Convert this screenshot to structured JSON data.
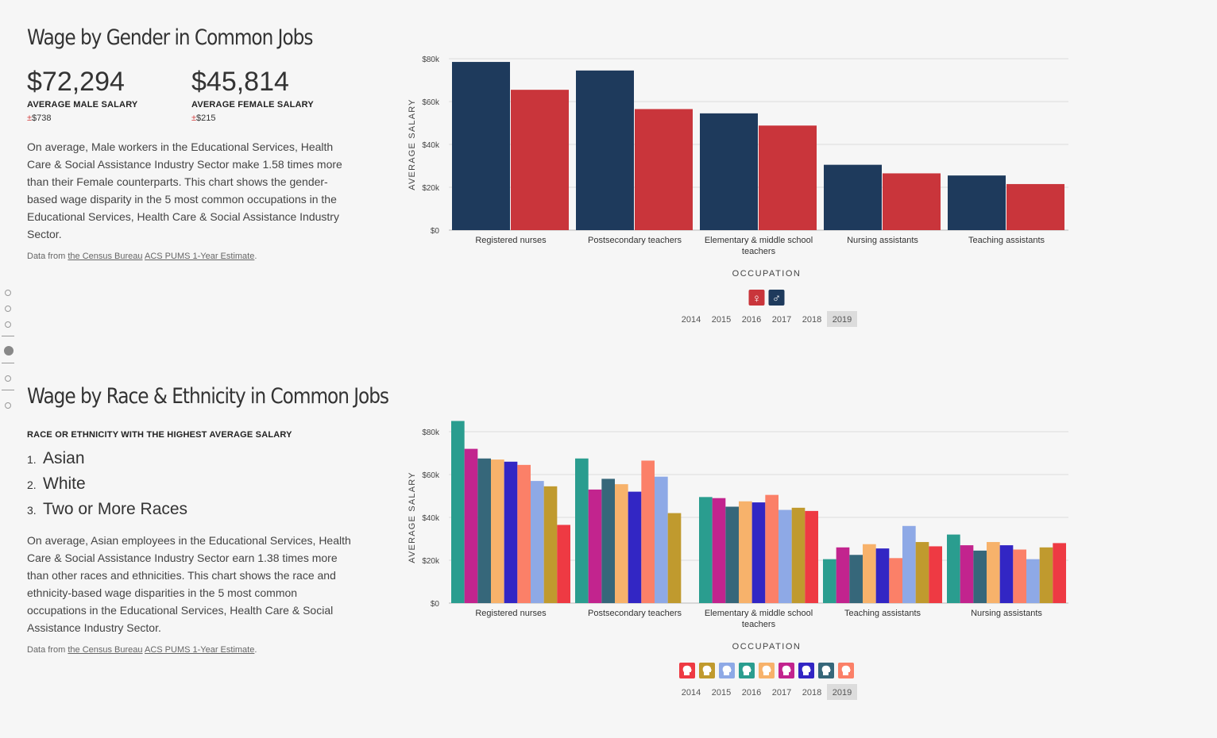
{
  "gender": {
    "title": "Wage by Gender in Common Jobs",
    "male": {
      "value": "$72,294",
      "label": "AVERAGE MALE SALARY",
      "moe_sign": "±",
      "moe": "$738"
    },
    "female": {
      "value": "$45,814",
      "label": "AVERAGE FEMALE SALARY",
      "moe_sign": "±",
      "moe": "$215"
    },
    "description": "On average, Male workers in the Educational Services, Health Care & Social Assistance Industry Sector make 1.58 times more than their Female counterparts. This chart shows the gender-based wage disparity in the 5 most common occupations in the Educational Services, Health Care & Social Assistance Industry Sector.",
    "source_prefix": "Data from",
    "source_link1": "the Census Bureau",
    "source_link2": "ACS PUMS 1-Year Estimate",
    "source_suffix": "."
  },
  "race": {
    "title": "Wage by Race & Ethnicity in Common Jobs",
    "ranking_heading": "RACE OR ETHNICITY WITH THE HIGHEST AVERAGE SALARY",
    "ranking": [
      {
        "num": "1.",
        "name": "Asian"
      },
      {
        "num": "2.",
        "name": "White"
      },
      {
        "num": "3.",
        "name": "Two or More Races"
      }
    ],
    "description": "On average, Asian employees in the Educational Services, Health Care & Social Assistance Industry Sector earn 1.38 times more than other races and ethnicities. This chart shows the race and ethnicity-based wage disparities in the 5 most common occupations in the Educational Services, Health Care & Social Assistance Industry Sector.",
    "source_prefix": "Data from",
    "source_link1": "the Census Bureau",
    "source_link2": "ACS PUMS 1-Year Estimate",
    "source_suffix": "."
  },
  "sidenav": {
    "count": 6,
    "active": 3
  },
  "chart_data": [
    {
      "type": "bar",
      "ylabel": "AVERAGE SALARY",
      "xlabel": "OCCUPATION",
      "ylim": [
        0,
        80000
      ],
      "yticks": [
        0,
        20000,
        40000,
        60000,
        80000
      ],
      "ytick_labels": [
        "$0",
        "$20k",
        "$40k",
        "$60k",
        "$80k"
      ],
      "grid": true,
      "categories": [
        "Registered nurses",
        "Postsecondary teachers",
        "Elementary & middle school teachers",
        "Nursing assistants",
        "Teaching assistants"
      ],
      "series": [
        {
          "color": "#1e3a5c",
          "values": [
            78500,
            74500,
            54500,
            30500,
            25500
          ]
        },
        {
          "color": "#c9353b",
          "values": [
            65500,
            56500,
            48800,
            26500,
            21500
          ]
        }
      ],
      "legend": [
        {
          "icon": "female-symbol-icon",
          "glyph": "♀",
          "color": "#c9353b"
        },
        {
          "icon": "male-symbol-icon",
          "glyph": "♂",
          "color": "#1e3a5c"
        }
      ],
      "years": [
        "2014",
        "2015",
        "2016",
        "2017",
        "2018",
        "2019"
      ],
      "selected_year": "2019"
    },
    {
      "type": "bar",
      "ylabel": "AVERAGE SALARY",
      "xlabel": "OCCUPATION",
      "ylim": [
        0,
        80000
      ],
      "yticks": [
        0,
        20000,
        40000,
        60000,
        80000
      ],
      "ytick_labels": [
        "$0",
        "$20k",
        "$40k",
        "$60k",
        "$80k"
      ],
      "grid": true,
      "categories": [
        "Registered nurses",
        "Postsecondary teachers",
        "Elementary & middle school teachers",
        "Teaching assistants",
        "Nursing assistants"
      ],
      "series": [
        {
          "color": "#2a9d8f",
          "values": [
            85000,
            67500,
            49500,
            20500,
            32000
          ]
        },
        {
          "color": "#c2248e",
          "values": [
            72000,
            53000,
            49000,
            26000,
            27000
          ]
        },
        {
          "color": "#36677a",
          "values": [
            67500,
            58000,
            45000,
            22500,
            24500
          ]
        },
        {
          "color": "#f7b26b",
          "values": [
            67000,
            55500,
            47500,
            27500,
            28500
          ]
        },
        {
          "color": "#3226c4",
          "values": [
            66000,
            52000,
            47000,
            25500,
            27000
          ]
        },
        {
          "color": "#fb8068",
          "values": [
            64500,
            66500,
            50500,
            21000,
            25000
          ]
        },
        {
          "color": "#8ea9e6",
          "values": [
            57000,
            59000,
            43500,
            36000,
            20500
          ]
        },
        {
          "color": "#c09a2e",
          "values": [
            54500,
            42000,
            44500,
            28500,
            26000
          ]
        },
        {
          "color": "#ee3a43",
          "values": [
            36500,
            null,
            43000,
            26500,
            28000
          ]
        }
      ],
      "legend": [
        {
          "icon": "person-head-icon",
          "color": "#ee3a43"
        },
        {
          "icon": "person-head-icon",
          "color": "#c09a2e"
        },
        {
          "icon": "person-head-icon",
          "color": "#8ea9e6"
        },
        {
          "icon": "person-head-icon",
          "color": "#2a9d8f"
        },
        {
          "icon": "person-head-icon",
          "color": "#f7b26b"
        },
        {
          "icon": "person-head-icon",
          "color": "#c2248e"
        },
        {
          "icon": "person-head-icon",
          "color": "#3226c4"
        },
        {
          "icon": "person-head-icon",
          "color": "#36677a"
        },
        {
          "icon": "person-head-icon",
          "color": "#fb8068"
        }
      ],
      "years": [
        "2014",
        "2015",
        "2016",
        "2017",
        "2018",
        "2019"
      ],
      "selected_year": "2019"
    }
  ]
}
